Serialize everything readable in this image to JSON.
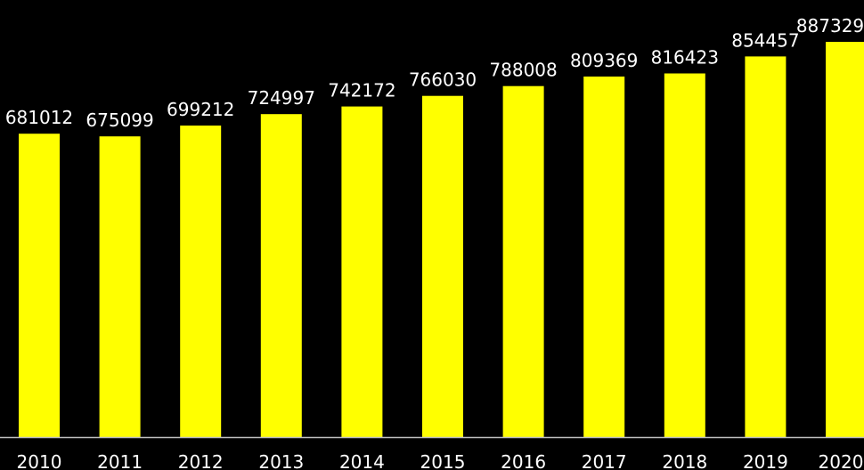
{
  "chart_data": {
    "type": "bar",
    "categories": [
      "2010",
      "2011",
      "2012",
      "2013",
      "2014",
      "2015",
      "2016",
      "2017",
      "2018",
      "2019",
      "2020"
    ],
    "values": [
      681012,
      675099,
      699212,
      724997,
      742172,
      766030,
      788008,
      809369,
      816423,
      854457,
      887329
    ],
    "title": "",
    "xlabel": "",
    "ylabel": "",
    "ylim": [
      0,
      887329
    ],
    "grid": false,
    "data_labels": true,
    "colors": {
      "background": "#000000",
      "bar": "#ffff00",
      "text": "#ffffff",
      "axis": "#bfbfbf"
    }
  }
}
